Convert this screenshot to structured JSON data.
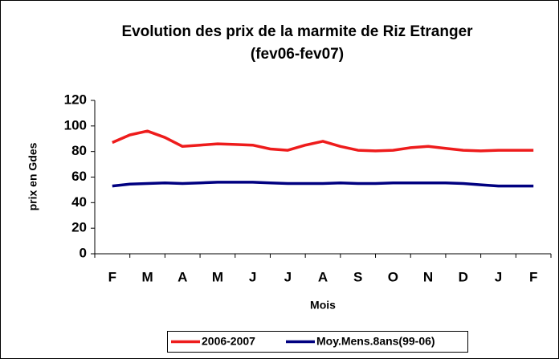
{
  "chart_data": {
    "type": "line",
    "title": "Evolution des prix de la marmite de Riz Etranger",
    "subtitle": "(fev06-fev07)",
    "y_label": "prix en Gdes",
    "x_label": "Mois",
    "categories": [
      "F",
      null,
      "M",
      null,
      "A",
      null,
      "M",
      null,
      "J",
      null,
      "J",
      null,
      "A",
      null,
      "S",
      null,
      "O",
      null,
      "N",
      null,
      "D",
      null,
      "J",
      null,
      "F"
    ],
    "series": [
      {
        "name": "2006-2007",
        "color": "#ee1c1c",
        "values": [
          87,
          93,
          96,
          91,
          84,
          85,
          86,
          85.5,
          85,
          82,
          81,
          85,
          88,
          84,
          81,
          80.5,
          81,
          83,
          84,
          82.5,
          81,
          80.5,
          81,
          81,
          81
        ]
      },
      {
        "name": "Moy.Mens.8ans(99-06)",
        "color": "#000080",
        "values": [
          53,
          54.5,
          55,
          55.5,
          55,
          55.5,
          56,
          56,
          56,
          55.5,
          55,
          55,
          55,
          55.5,
          55,
          55,
          55.5,
          55.5,
          55.5,
          55.5,
          55,
          54,
          53,
          53,
          53
        ]
      }
    ],
    "ylim": [
      0,
      120
    ],
    "yticks": [
      0,
      20,
      40,
      60,
      80,
      100,
      120
    ],
    "legend": "bottom",
    "grid": false
  }
}
